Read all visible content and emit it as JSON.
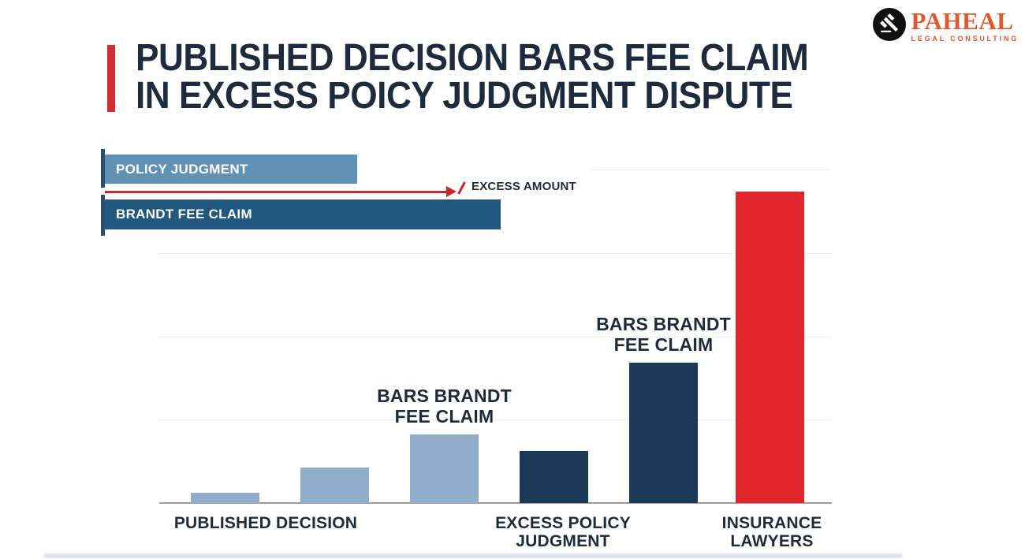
{
  "title": {
    "line1": "PUBLISHED DECISION BARS FEE CLAIM",
    "line2": "IN EXCESS POICY JUDGMENT DISPUTE",
    "accent_color": "#ce2f33",
    "text_color": "#1e2b3c"
  },
  "brand": {
    "name": "PAHEAL",
    "tagline": "LEGAL CONSULTING",
    "color": "#e2572c",
    "icon": "gavel-icon"
  },
  "legend": {
    "policy_bar_label": "POLICY JUDGMENT",
    "policy_bar_color": "#6191b4",
    "brandt_bar_label": "BRANDT FEE CLAIM",
    "brandt_bar_color": "#20587f",
    "excess_label": "EXCESS AMOUNT",
    "arrow_color": "#c5282d"
  },
  "chart_data": {
    "type": "bar",
    "title": "",
    "xlabel": "",
    "ylabel": "",
    "ylim": [
      0,
      4.2
    ],
    "grid": true,
    "gridline_unit": 1,
    "categories": [
      "PUBLISHED DECISION",
      "EXCESS POLICY\nJUDGMENT",
      "INSURANCE\nLAWYERS"
    ],
    "palette": {
      "light": "#90aec9",
      "navy": "#1b3a58",
      "red": "#e1252a"
    },
    "bars": [
      {
        "category": "PUBLISHED DECISION",
        "value": 0.12,
        "color_role": "light",
        "annotation": ""
      },
      {
        "category": "PUBLISHED DECISION",
        "value": 0.42,
        "color_role": "light",
        "annotation": ""
      },
      {
        "category": "EXCESS POLICY JUDGMENT",
        "value": 0.82,
        "color_role": "light",
        "annotation": "BARS BRANDT\nFEE CLAIM"
      },
      {
        "category": "EXCESS POLICY JUDGMENT",
        "value": 0.62,
        "color_role": "navy",
        "annotation": ""
      },
      {
        "category": "INSURANCE LAWYERS",
        "value": 1.68,
        "color_role": "navy",
        "annotation": "BARS BRANDT\nFEE CLAIM"
      },
      {
        "category": "INSURANCE LAWYERS",
        "value": 3.73,
        "color_role": "red",
        "annotation": ""
      }
    ]
  }
}
